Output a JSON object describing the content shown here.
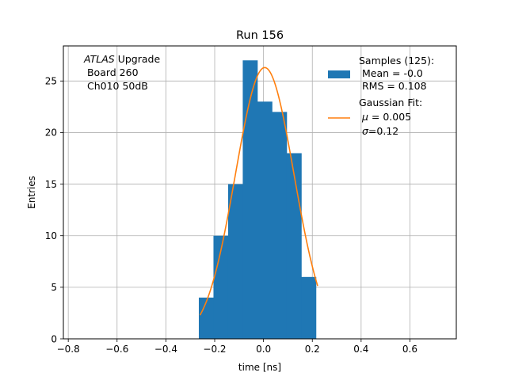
{
  "chart_data": {
    "type": "bar",
    "title": "Run 156",
    "xlabel": "time [ns]",
    "ylabel": "Entries",
    "xlim": [
      -0.82,
      0.79
    ],
    "ylim": [
      0,
      28.4
    ],
    "grid": true,
    "xticks": [
      -0.8,
      -0.6,
      -0.4,
      -0.2,
      0.0,
      0.2,
      0.4,
      0.6
    ],
    "xtick_labels": [
      "−0.8",
      "−0.6",
      "−0.4",
      "−0.2",
      "0.0",
      "0.2",
      "0.4",
      "0.6"
    ],
    "yticks": [
      0,
      5,
      10,
      15,
      20,
      25
    ],
    "ytick_labels": [
      "0",
      "5",
      "10",
      "15",
      "20",
      "25"
    ],
    "annotation": {
      "line1_italic": "ATLAS",
      "line1_rest": " Upgrade",
      "line2": " Board 260",
      "line3": " Ch010 50dB"
    },
    "histogram": {
      "name": "Samples (125):",
      "color": "#1f77b4",
      "bin_edges": [
        -0.265,
        -0.205,
        -0.145,
        -0.085,
        -0.025,
        0.035,
        0.095,
        0.155,
        0.215
      ],
      "counts": [
        4,
        10,
        15,
        27,
        23,
        22,
        18,
        6
      ]
    },
    "fit": {
      "name": "Gaussian Fit:",
      "color": "#ff7f0e",
      "amplitude": 26.3,
      "mu": 0.005,
      "sigma": 0.12,
      "x_start": -0.26,
      "x_end": 0.222
    },
    "legend": {
      "placement": "top-right",
      "hist_lines": [
        "Samples (125):",
        " Mean = -0.0",
        " RMS = 0.108"
      ],
      "fit_line1": "Gaussian Fit:",
      "fit_mu_sym": "μ",
      "fit_mu_rest": " = 0.005",
      "fit_sigma_sym": "σ",
      "fit_sigma_rest": "=0.12"
    }
  }
}
